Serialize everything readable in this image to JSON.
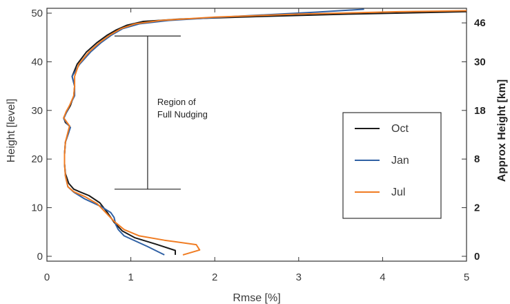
{
  "chart_data": {
    "type": "line",
    "xlabel": "Rmse [%]",
    "ylabel": "Height [level]",
    "y2label": "Approx Height [km]",
    "xlim": [
      0,
      5
    ],
    "ylim": [
      -1,
      51
    ],
    "x_ticks": [
      0,
      1,
      2,
      3,
      4,
      5
    ],
    "y_ticks": [
      0,
      10,
      20,
      30,
      40,
      50
    ],
    "right_axis_ticks": [
      {
        "level": 0,
        "label": "0"
      },
      {
        "level": 10,
        "label": "2"
      },
      {
        "level": 20,
        "label": "8"
      },
      {
        "level": 30,
        "label": "18"
      },
      {
        "level": 40,
        "label": "30"
      },
      {
        "level": 48,
        "label": "46"
      }
    ],
    "grid": false,
    "legend_position": "right",
    "annotation": {
      "lines": [
        "Region of",
        "Full Nudging"
      ],
      "x": 1.2,
      "y_range": [
        13.8,
        45.3
      ]
    },
    "series": [
      {
        "name": "Oct",
        "color": "#1a1a1a",
        "x": [
          1.53,
          1.53,
          1.3,
          1.05,
          0.9,
          0.8,
          0.72,
          0.63,
          0.5,
          0.4,
          0.32,
          0.26,
          0.22,
          0.21,
          0.21,
          0.22,
          0.26,
          0.27,
          0.22,
          0.2,
          0.23,
          0.28,
          0.32,
          0.33,
          0.3,
          0.36,
          0.47,
          0.6,
          0.72,
          0.82,
          0.95,
          1.15,
          1.6,
          2.5,
          3.6,
          5.0
        ],
        "y": [
          0.3,
          1.2,
          2.5,
          3.8,
          5.2,
          7.0,
          9.0,
          11.0,
          12.5,
          13.2,
          13.8,
          15.0,
          17.0,
          19.0,
          21.0,
          23.5,
          25.5,
          26.8,
          27.5,
          28.5,
          29.5,
          31.0,
          33.0,
          35.0,
          37.0,
          39.5,
          42.0,
          44.0,
          45.5,
          46.5,
          47.5,
          48.3,
          48.8,
          49.3,
          49.8,
          50.3
        ]
      },
      {
        "name": "Jan",
        "color": "#2f60a4",
        "x": [
          1.4,
          1.2,
          0.92,
          0.85,
          0.82,
          0.81,
          0.8,
          0.76,
          0.65,
          0.45,
          0.32,
          0.25,
          0.22,
          0.21,
          0.21,
          0.22,
          0.26,
          0.28,
          0.24,
          0.2,
          0.23,
          0.27,
          0.33,
          0.33,
          0.3,
          0.39,
          0.52,
          0.65,
          0.77,
          0.9,
          1.1,
          1.45,
          2.2,
          3.2,
          3.78
        ],
        "y": [
          0.3,
          2.0,
          4.2,
          5.5,
          6.5,
          7.3,
          8.0,
          9.0,
          10.2,
          11.8,
          13.2,
          14.3,
          16.5,
          19.0,
          21.0,
          23.5,
          25.5,
          26.5,
          27.3,
          28.3,
          29.5,
          31.0,
          33.0,
          35.0,
          37.0,
          39.5,
          42.0,
          44.0,
          45.5,
          46.8,
          47.8,
          48.5,
          49.3,
          50.2,
          50.8
        ]
      },
      {
        "name": "Jul",
        "color": "#f07c22",
        "x": [
          1.62,
          1.82,
          1.78,
          1.4,
          1.1,
          0.92,
          0.8,
          0.7,
          0.6,
          0.45,
          0.32,
          0.25,
          0.22,
          0.21,
          0.21,
          0.22,
          0.25,
          0.27,
          0.24,
          0.2,
          0.23,
          0.27,
          0.32,
          0.33,
          0.33,
          0.38,
          0.5,
          0.63,
          0.75,
          0.88,
          1.05,
          1.35,
          2.0,
          3.0,
          4.2,
          5.0
        ],
        "y": [
          0.3,
          1.3,
          2.4,
          3.3,
          4.2,
          5.5,
          7.2,
          9.0,
          10.8,
          12.3,
          13.3,
          14.3,
          16.5,
          19.0,
          21.0,
          23.5,
          25.5,
          26.8,
          27.5,
          28.5,
          29.8,
          31.0,
          33.0,
          35.0,
          37.0,
          39.5,
          42.0,
          44.0,
          45.5,
          46.8,
          47.8,
          48.5,
          49.2,
          49.8,
          50.3,
          50.5
        ]
      }
    ]
  }
}
